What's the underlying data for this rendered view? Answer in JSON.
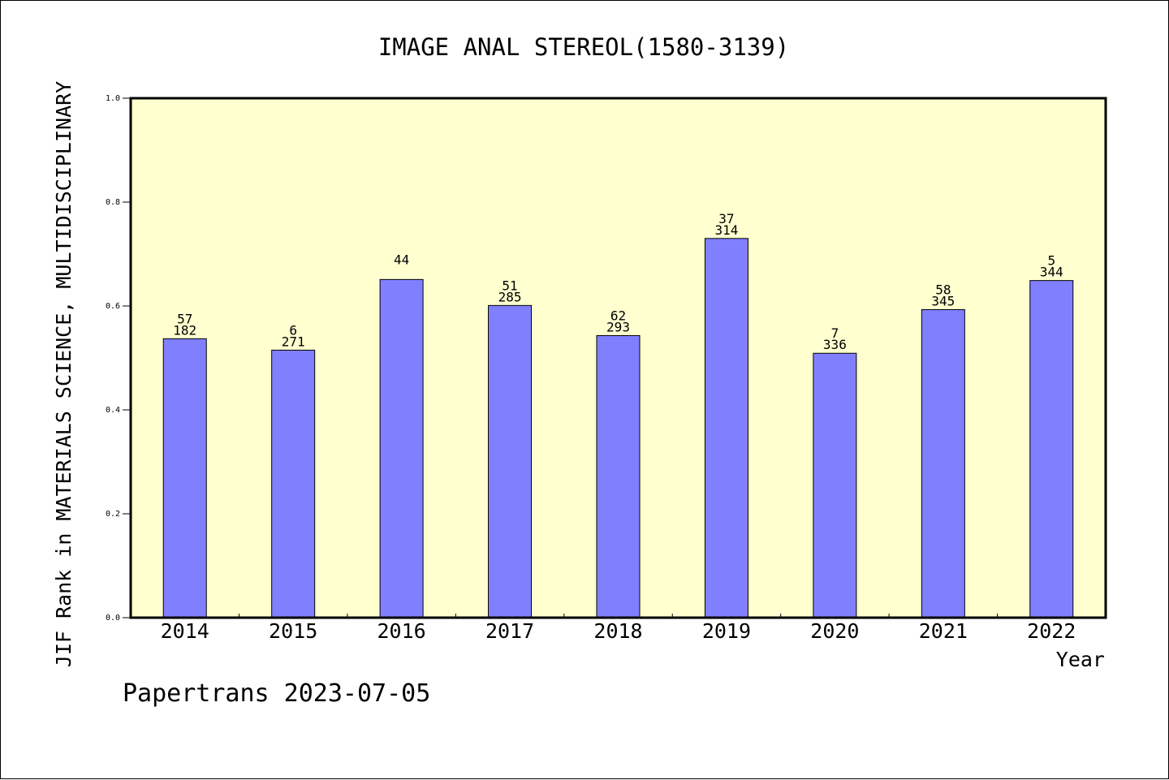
{
  "chart_data": {
    "type": "bar",
    "title": "IMAGE ANAL STEREOL(1580-3139)",
    "xlabel": "Year",
    "ylabel": "JIF Rank in MATERIALS SCIENCE, MULTIDISCIPLINARY",
    "ylim": [
      0,
      1.0
    ],
    "yticks": [
      "0.0",
      "0.2",
      "0.4",
      "0.6",
      "0.8",
      "1.0"
    ],
    "categories": [
      "2014",
      "2015",
      "2016",
      "2017",
      "2018",
      "2019",
      "2020",
      "2021",
      "2022"
    ],
    "values": [
      0.537,
      0.515,
      0.651,
      0.601,
      0.543,
      0.73,
      0.509,
      0.593,
      0.649
    ],
    "label_top": [
      "57",
      "6",
      "",
      "51",
      "62",
      "37",
      "7",
      "58",
      "5"
    ],
    "label_bottom": [
      "182",
      "271",
      "44",
      "285",
      "293",
      "314",
      "336",
      "345",
      "344"
    ],
    "grid": false,
    "colors": {
      "bar": "#8080ff",
      "plot_bg": "#ffffd0",
      "axis": "#000000"
    }
  },
  "footer": {
    "credit": "Papertrans 2023-07-05"
  }
}
